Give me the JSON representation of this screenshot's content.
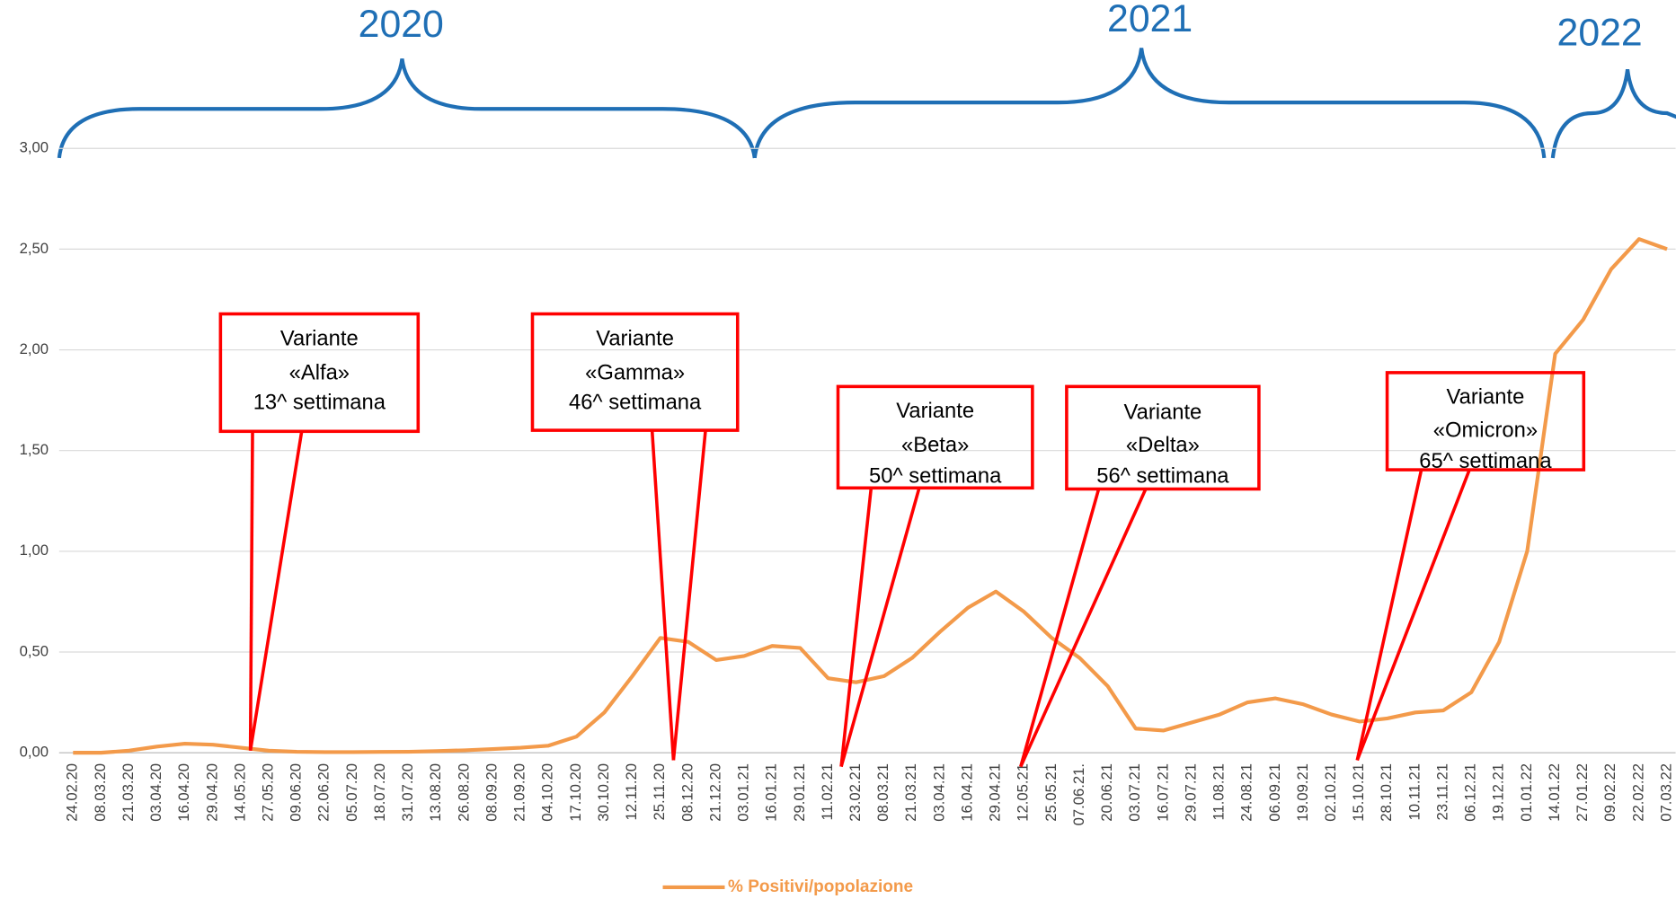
{
  "chart_data": {
    "type": "line",
    "year_labels": [
      "2020",
      "2021",
      "2022"
    ],
    "categories": [
      "24.02.20",
      "08.03.20",
      "21.03.20",
      "03.04.20",
      "16.04.20",
      "29.04.20",
      "14.05.20",
      "27.05.20",
      "09.06.20",
      "22.06.20",
      "05.07.20",
      "18.07.20",
      "31.07.20",
      "13.08.20",
      "26.08.20",
      "08.09.20",
      "21.09.20",
      "04.10.20",
      "17.10.20",
      "30.10.20",
      "12.11.20",
      "25.11.20",
      "08.12.20",
      "21.12.20",
      "03.01.21",
      "16.01.21",
      "29.01.21",
      "11.02.21",
      "23.02.21",
      "08.03.21",
      "21.03.21",
      "03.04.21",
      "16.04.21",
      "29.04.21",
      "12.05.21",
      "25.05.21",
      "07.06.21.",
      "20.06.21",
      "03.07.21",
      "16.07.21",
      "29.07.21",
      "11.08.21",
      "24.08.21",
      "06.09.21",
      "19.09.21",
      "02.10.21",
      "15.10.21",
      "28.10.21",
      "10.11.21",
      "23.11.21",
      "06.12.21",
      "19.12.21",
      "01.01.22",
      "14.01.22",
      "27.01.22",
      "09.02.22",
      "22.02.22",
      "07.03.22"
    ],
    "series": [
      {
        "name": "% Positivi/popolazione",
        "color": "#f39a4a",
        "values": [
          0,
          0,
          0.01,
          0.03,
          0.045,
          0.04,
          0.025,
          0.01,
          0.005,
          0.003,
          0.003,
          0.004,
          0.005,
          0.008,
          0.012,
          0.018,
          0.025,
          0.035,
          0.08,
          0.2,
          0.38,
          0.57,
          0.55,
          0.46,
          0.48,
          0.53,
          0.52,
          0.37,
          0.35,
          0.38,
          0.47,
          0.6,
          0.72,
          0.8,
          0.7,
          0.57,
          0.47,
          0.33,
          0.12,
          0.11,
          0.15,
          0.19,
          0.25,
          0.27,
          0.24,
          0.19,
          0.155,
          0.17,
          0.2,
          0.21,
          0.3,
          0.55,
          1.0,
          1.98,
          2.15,
          2.4,
          2.55,
          2.5
        ]
      }
    ],
    "ylim": [
      0,
      3
    ],
    "yticks": [
      {
        "value": 0,
        "label": "0,00"
      },
      {
        "value": 0.5,
        "label": "0,50"
      },
      {
        "value": 1,
        "label": "1,00"
      },
      {
        "value": 1.5,
        "label": "1,50"
      },
      {
        "value": 2,
        "label": "2,00"
      },
      {
        "value": 2.5,
        "label": "2,50"
      },
      {
        "value": 3,
        "label": "3,00"
      }
    ],
    "grid": true,
    "legend": "bottom",
    "annotations": [
      {
        "lines": [
          "Variante",
          "«Alfa»",
          "13^ settimana"
        ]
      },
      {
        "lines": [
          "Variante",
          "«Gamma»",
          "46^ settimana"
        ]
      },
      {
        "lines": [
          "Variante",
          "«Beta»",
          "50^ settimana"
        ]
      },
      {
        "lines": [
          "Variante",
          "«Delta»",
          "56^ settimana"
        ]
      },
      {
        "lines": [
          "Variante",
          "«Omicron»",
          "65^ settimana"
        ]
      }
    ]
  }
}
